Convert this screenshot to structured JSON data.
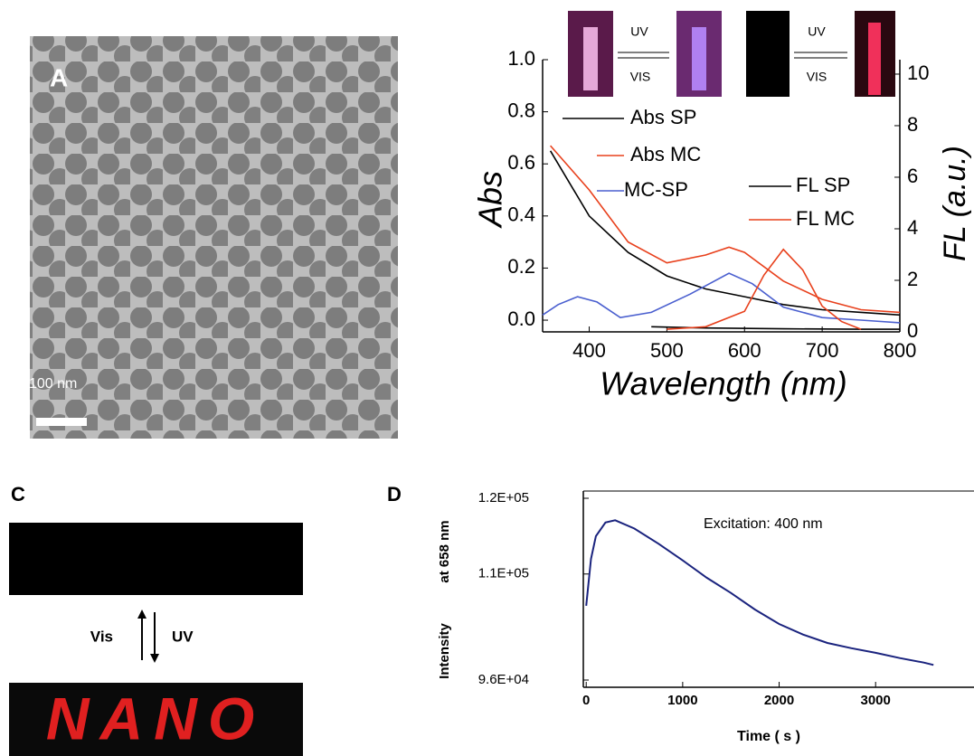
{
  "panel_a": {
    "label": "A",
    "scale_bar": "100 nm"
  },
  "panel_c": {
    "label": "C",
    "arrow_up": "Vis",
    "arrow_down": "UV",
    "word": "NANO"
  },
  "chart_data": [
    {
      "type": "line",
      "xlabel": "Wavelength (nm)",
      "ylabel": "Abs",
      "y2label": "FL (a.u.)",
      "annotations": [
        "UV",
        "VIS",
        "UV",
        "VIS"
      ],
      "xlim": [
        340,
        800
      ],
      "xticks": [
        400,
        500,
        600,
        700,
        800
      ],
      "ylim": [
        -0.045,
        1.0
      ],
      "yticks": [
        {
          "value": 0,
          "label": "0.0"
        },
        0.2,
        0.4,
        0.6,
        0.8,
        {
          "value": 1,
          "label": "1.0"
        }
      ],
      "y2lim": [
        0,
        10.56
      ],
      "y2ticks": [
        0,
        2,
        4,
        6,
        8,
        10
      ],
      "series": [
        {
          "name": "Abs SP",
          "color": "#000000",
          "x": [
            350,
            400,
            450,
            500,
            550,
            600,
            650,
            700,
            750,
            800
          ],
          "values": [
            0.65,
            0.4,
            0.26,
            0.17,
            0.12,
            0.09,
            0.06,
            0.04,
            0.03,
            0.02
          ]
        },
        {
          "name": "Abs MC",
          "color": "#e8401c",
          "x": [
            350,
            400,
            450,
            500,
            550,
            580,
            600,
            650,
            700,
            750,
            800
          ],
          "values": [
            0.67,
            0.5,
            0.3,
            0.22,
            0.25,
            0.28,
            0.26,
            0.15,
            0.08,
            0.04,
            0.03
          ]
        },
        {
          "name": "MC-SP",
          "color": "#4a5fcf",
          "x": [
            340,
            360,
            385,
            410,
            440,
            480,
            530,
            580,
            610,
            650,
            700,
            750,
            800
          ],
          "values": [
            0.02,
            0.06,
            0.09,
            0.07,
            0.01,
            0.03,
            0.1,
            0.18,
            0.14,
            0.05,
            0.01,
            0.0,
            -0.01
          ]
        },
        {
          "name": "FL SP",
          "color": "#000000",
          "axis": "y2",
          "x": [
            480,
            550,
            650,
            750,
            800
          ],
          "values": [
            0.2,
            0.15,
            0.12,
            0.1,
            0.1
          ]
        },
        {
          "name": "FL MC",
          "color": "#e8401c",
          "axis": "y2",
          "x": [
            500,
            550,
            600,
            625,
            650,
            675,
            700,
            725,
            750
          ],
          "values": [
            0.1,
            0.2,
            0.8,
            2.2,
            3.2,
            2.4,
            1.0,
            0.4,
            0.1
          ]
        }
      ]
    },
    {
      "type": "line",
      "panel_label": "D",
      "xlabel": "Time ( s )",
      "ylabel": [
        "Intensity",
        "at 658 nm"
      ],
      "annotation": "Excitation: 400 nm",
      "xlim": [
        -30,
        4020
      ],
      "xticks": [
        0,
        1000,
        2000,
        3000
      ],
      "ylim": [
        96000,
        120000
      ],
      "yticks": [
        {
          "value": 96000,
          "label": "9.6E+04"
        },
        {
          "value": 110000,
          "label": "1.1E+05"
        },
        {
          "value": 120000,
          "label": "1.2E+05"
        }
      ],
      "x": [
        0,
        50,
        100,
        200,
        300,
        500,
        750,
        1000,
        1250,
        1500,
        1750,
        2000,
        2250,
        2500,
        2750,
        3000,
        3250,
        3500,
        3600
      ],
      "series": [
        {
          "color": "#1a237e",
          "values": [
            105800,
            112000,
            115000,
            116800,
            117100,
            116000,
            114000,
            111800,
            109500,
            107500,
            105300,
            103400,
            102000,
            100900,
            100200,
            99600,
            98900,
            98300,
            98000
          ]
        }
      ]
    }
  ]
}
